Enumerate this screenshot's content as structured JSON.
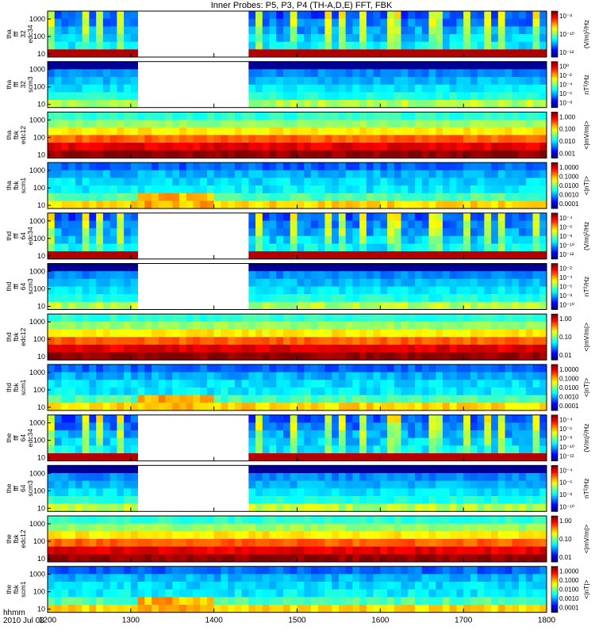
{
  "chart_data": {
    "type": "heatmap",
    "title": "Inner Probes: P5, P3, P4 (TH-A,D,E) FFT, FBK",
    "x_axis": {
      "ticks": [
        1200,
        1300,
        1400,
        1500,
        1600,
        1700,
        1800
      ],
      "range": [
        1200,
        1800
      ],
      "label_hhmm": "hhmm",
      "label_date": "2010 Jul 08"
    },
    "panels": [
      {
        "label": [
          "tha",
          "fff",
          "32",
          "edc34"
        ],
        "y_ticks": [
          "1000",
          "100",
          "10"
        ],
        "cbar_ticks": [
          "10⁻⁸",
          "10⁻¹⁰",
          "10⁻¹²"
        ],
        "cbar_label": "(V/m)²/Hz",
        "kind": "fff_e",
        "gap": [
          1308,
          1445
        ]
      },
      {
        "label": [
          "tha",
          "fff",
          "32",
          "scm3"
        ],
        "y_ticks": [
          "1000",
          "100",
          "10"
        ],
        "cbar_ticks": [
          "10⁰",
          "10⁻²",
          "10⁻⁴",
          "10⁻⁶",
          "10⁻⁸"
        ],
        "cbar_label": "nT²/Hz",
        "kind": "fff_b",
        "gap": [
          1308,
          1445
        ]
      },
      {
        "label": [
          "tha",
          "fbk",
          "edc12"
        ],
        "y_ticks": [
          "1000",
          "100",
          "10"
        ],
        "cbar_ticks": [
          "1.000",
          "0.100",
          "0.010",
          "0.001"
        ],
        "cbar_label": "<|mV/m|>",
        "kind": "fbk_e",
        "gap": null
      },
      {
        "label": [
          "tha",
          "fbk",
          "scm1"
        ],
        "y_ticks": [
          "1000",
          "100",
          "10"
        ],
        "cbar_ticks": [
          "1.0000",
          "0.1000",
          "0.0100",
          "0.0010",
          "0.0001"
        ],
        "cbar_label": "<|nT|>",
        "kind": "fbk_b",
        "gap": null
      },
      {
        "label": [
          "thd",
          "fff",
          "64",
          "edc34"
        ],
        "y_ticks": [
          "1000",
          "100",
          "10"
        ],
        "cbar_ticks": [
          "10⁻⁴",
          "10⁻⁶",
          "10⁻⁸",
          "10⁻¹⁰",
          "10⁻¹²"
        ],
        "cbar_label": "(V/m)²/Hz",
        "kind": "fff_e",
        "gap": [
          1308,
          1445
        ]
      },
      {
        "label": [
          "thd",
          "fff",
          "64",
          "scm3"
        ],
        "y_ticks": [
          "1000",
          "100",
          "10"
        ],
        "cbar_ticks": [
          "10⁻²",
          "10⁻⁴",
          "10⁻⁶",
          "10⁻⁸",
          "10⁻¹⁰"
        ],
        "cbar_label": "nT²/Hz",
        "kind": "fff_b",
        "gap": [
          1308,
          1445
        ]
      },
      {
        "label": [
          "thd",
          "fbk",
          "edc12"
        ],
        "y_ticks": [
          "1000",
          "100",
          "10"
        ],
        "cbar_ticks": [
          "1.00",
          "0.10",
          "0.01"
        ],
        "cbar_label": "<|mV/m|>",
        "kind": "fbk_e",
        "gap": null
      },
      {
        "label": [
          "thd",
          "fbk",
          "scm1"
        ],
        "y_ticks": [
          "1000",
          "100",
          "10"
        ],
        "cbar_ticks": [
          "1.0000",
          "0.1000",
          "0.0100",
          "0.0010",
          "0.0001"
        ],
        "cbar_label": "<|nT|>",
        "kind": "fbk_b",
        "gap": null
      },
      {
        "label": [
          "the",
          "fff",
          "64",
          "edc34"
        ],
        "y_ticks": [
          "1000",
          "100",
          "10"
        ],
        "cbar_ticks": [
          "10⁻⁴",
          "10⁻⁶",
          "10⁻⁸",
          "10⁻¹⁰",
          "10⁻¹²"
        ],
        "cbar_label": "(V/m)²/Hz",
        "kind": "fff_e",
        "gap": [
          1308,
          1445
        ]
      },
      {
        "label": [
          "the",
          "fff",
          "64",
          "scm3"
        ],
        "y_ticks": [
          "1000",
          "100",
          "10"
        ],
        "cbar_ticks": [
          "10⁻⁴",
          "10⁻⁶",
          "10⁻⁸",
          "10⁻¹⁰"
        ],
        "cbar_label": "nT²/Hz",
        "kind": "fff_b",
        "gap": [
          1308,
          1445
        ]
      },
      {
        "label": [
          "the",
          "fbk",
          "edc12"
        ],
        "y_ticks": [
          "1000",
          "100",
          "10"
        ],
        "cbar_ticks": [
          "1.00",
          "0.10",
          "0.01"
        ],
        "cbar_label": "<|mV/m|>",
        "kind": "fbk_e",
        "gap": null
      },
      {
        "label": [
          "the",
          "fbk",
          "scm1"
        ],
        "y_ticks": [
          "1000",
          "100",
          "10"
        ],
        "cbar_ticks": [
          "1.0000",
          "0.1000",
          "0.0100",
          "0.0010",
          "0.0001"
        ],
        "cbar_label": "<|nT|>",
        "kind": "fbk_b",
        "gap": null
      }
    ]
  }
}
